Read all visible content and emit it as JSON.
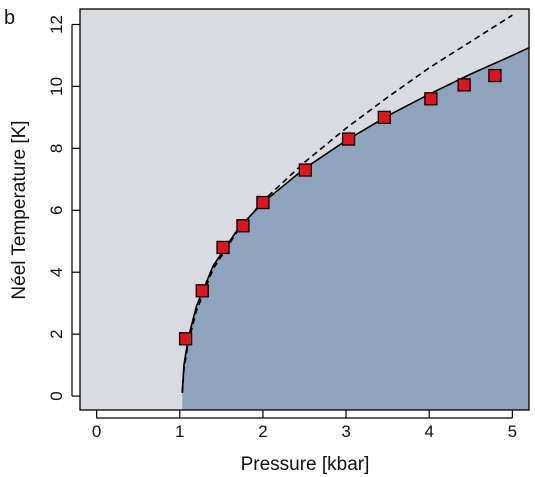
{
  "panel_label": "b",
  "chart_data": {
    "type": "scatter",
    "xlabel": "Pressure [kbar]",
    "ylabel": "Néel Temperature [K]",
    "xlim": [
      -0.2,
      5.2
    ],
    "ylim": [
      -0.45,
      12.5
    ],
    "xticks": [
      0,
      1,
      2,
      3,
      4,
      5
    ],
    "xtick_labels": [
      "0",
      "1",
      "2",
      "3",
      "4",
      "5"
    ],
    "yticks": [
      0,
      2,
      4,
      6,
      8,
      10,
      12
    ],
    "ytick_labels": [
      "0",
      "2",
      "4",
      "6",
      "8",
      "10",
      "12"
    ],
    "grid": false,
    "series": [
      {
        "marker": "square",
        "x": [
          1.07,
          1.27,
          1.52,
          1.76,
          2.0,
          2.51,
          3.03,
          3.46,
          4.02,
          4.42,
          4.79
        ],
        "y": [
          1.85,
          3.4,
          4.8,
          5.5,
          6.25,
          7.3,
          8.3,
          9.0,
          9.6,
          10.05,
          10.35
        ],
        "color": "#e0141c",
        "edge_color": "#000000"
      },
      {
        "style": "solid",
        "color": "#000000",
        "x": [
          1.03,
          1.05,
          1.1,
          1.2,
          1.4,
          1.7,
          2.0,
          2.5,
          3.0,
          3.5,
          4.0,
          4.5,
          5.0,
          5.2
        ],
        "y": [
          0.1,
          1.0,
          1.85,
          2.9,
          4.2,
          5.4,
          6.25,
          7.35,
          8.25,
          9.05,
          9.75,
          10.4,
          11.0,
          11.25
        ]
      },
      {
        "style": "dashed",
        "color": "#000000",
        "x": [
          1.03,
          1.05,
          1.1,
          1.2,
          1.4,
          1.7,
          2.0,
          2.5,
          3.0,
          3.5,
          4.0,
          4.5,
          5.0
        ],
        "y": [
          0.1,
          0.85,
          1.7,
          2.75,
          4.1,
          5.35,
          6.3,
          7.55,
          8.65,
          9.65,
          10.6,
          11.45,
          12.3
        ]
      }
    ],
    "regions": [
      {
        "kind": "above-curve",
        "color": "#d8dbe0"
      },
      {
        "kind": "below-solid-curve",
        "color": "#8ea4bd"
      }
    ]
  }
}
